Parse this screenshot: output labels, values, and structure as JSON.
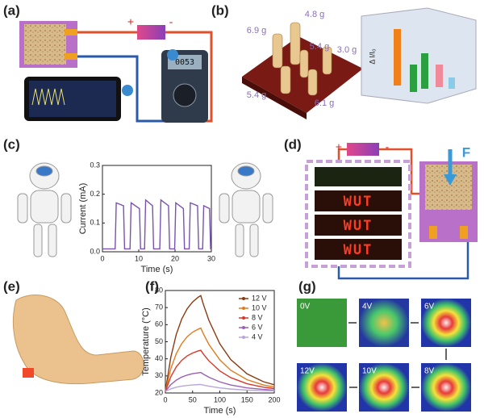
{
  "panel_labels": [
    "(a)",
    "(b)",
    "(c)",
    "(d)",
    "(e)",
    "(f)",
    "(g)"
  ],
  "panel_a": {
    "polarity": [
      "+",
      "-"
    ],
    "meter_reading": "0053"
  },
  "panel_b": {
    "weights": [
      "6.9 g",
      "4.8 g",
      "5.4 g",
      "3.0 g",
      "5.4 g",
      "6.1 g"
    ],
    "axis_label": "Δ I/I₀"
  },
  "panel_d": {
    "polarity": [
      "+",
      "-"
    ],
    "force": "F",
    "displays": [
      "WUT",
      "WUT",
      "WUT"
    ]
  },
  "panel_g": {
    "voltages": [
      "0V",
      "4V",
      "6V",
      "12V",
      "10V",
      "8V"
    ]
  },
  "chart_data": [
    {
      "type": "line",
      "xlabel": "Time (s)",
      "ylabel": "Current (mA)",
      "color": "#7a52b0",
      "x": [
        0,
        3.5,
        3.8,
        5.8,
        6.1,
        7.6,
        7.9,
        10.2,
        10.5,
        11.6,
        11.9,
        13.8,
        14.1,
        15.8,
        16.1,
        18.2,
        18.5,
        19.9,
        20.2,
        22.3,
        22.6,
        23.9,
        24.2,
        26.2,
        26.5,
        27.6,
        27.9,
        29.5,
        29.8,
        30
      ],
      "values": [
        0.01,
        0.01,
        0.17,
        0.16,
        0.01,
        0.01,
        0.17,
        0.15,
        0.01,
        0.01,
        0.18,
        0.16,
        0.01,
        0.01,
        0.18,
        0.16,
        0.01,
        0.01,
        0.17,
        0.15,
        0.01,
        0.01,
        0.17,
        0.16,
        0.01,
        0.01,
        0.16,
        0.15,
        0.01,
        0.01
      ],
      "xlim": [
        0,
        30
      ],
      "xticks": [
        0,
        10,
        20,
        30
      ],
      "ylim": [
        0,
        0.3
      ],
      "yticks": [
        {
          "value": 0,
          "label": "0.0"
        },
        0.1,
        0.2,
        0.3
      ]
    },
    {
      "type": "line",
      "xlabel": "Time (s)",
      "ylabel": "Temperature (°C)",
      "legend": "upper right",
      "x": [
        0,
        10,
        20,
        30,
        40,
        50,
        60,
        65,
        70,
        80,
        100,
        120,
        150,
        180,
        200
      ],
      "series": [
        {
          "name": "12 V",
          "color": "#8b3a0e",
          "values": [
            21,
            40.9,
            54.3,
            63.3,
            69.3,
            73.3,
            76.0,
            77,
            71.7,
            62.5,
            48.8,
            39.6,
            31.2,
            26.6,
            24.8
          ]
        },
        {
          "name": "10 V",
          "color": "#e07b1c",
          "values": [
            21,
            34.2,
            43.0,
            48.9,
            52.9,
            55.6,
            57.3,
            58,
            54.5,
            48.4,
            39.4,
            33.3,
            27.8,
            24.7,
            23.5
          ]
        },
        {
          "name": "8 V",
          "color": "#d9382a",
          "values": [
            21,
            29.5,
            35.3,
            39.1,
            41.7,
            43.4,
            44.6,
            45,
            42.7,
            38.8,
            32.9,
            29.0,
            25.4,
            23.4,
            22.6
          ]
        },
        {
          "name": "6 V",
          "color": "#9b5fb5",
          "values": [
            21,
            24.9,
            27.5,
            29.3,
            30.5,
            31.3,
            31.8,
            32,
            31.0,
            29.2,
            26.5,
            24.7,
            23.0,
            22.1,
            21.7
          ]
        },
        {
          "name": "4 V",
          "color": "#b8a6dc",
          "values": [
            21,
            22.4,
            23.4,
            24.0,
            24.4,
            24.7,
            24.9,
            25,
            24.6,
            24.0,
            23.0,
            22.3,
            21.7,
            21.4,
            21.3
          ]
        }
      ],
      "xlim": [
        0,
        200
      ],
      "xticks": [
        0,
        50,
        100,
        150,
        200
      ],
      "ylim": [
        20,
        80
      ],
      "yticks": [
        20,
        30,
        40,
        50,
        60,
        70,
        80
      ]
    }
  ]
}
